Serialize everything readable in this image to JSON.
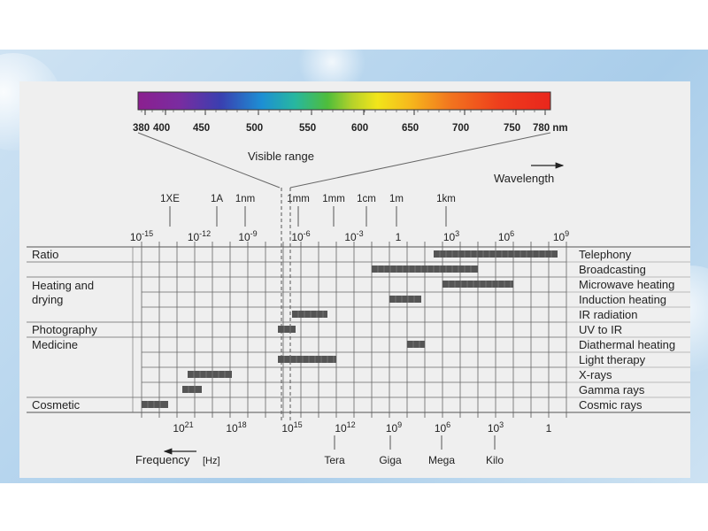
{
  "wavelength_nm_labels": [
    "380",
    "400",
    "450",
    "500",
    "550",
    "600",
    "650",
    "700",
    "750",
    "780 nm"
  ],
  "visible_range_label": "Visible range",
  "wavelength_label": "Wavelength",
  "frequency_label": "Frequency",
  "frequency_unit": "[Hz]",
  "length_labels": [
    "1XE",
    "1A",
    "1nm",
    "1mm",
    "1mm",
    "1cm",
    "1m",
    "1km"
  ],
  "power_ticks": [
    {
      "base": "10",
      "exp": "-15"
    },
    {
      "base": "10",
      "exp": "-12"
    },
    {
      "base": "10",
      "exp": "-9"
    },
    {
      "base": "10",
      "exp": "-6"
    },
    {
      "base": "10",
      "exp": "-3"
    },
    {
      "base": "1",
      "exp": ""
    },
    {
      "base": "10",
      "exp": "3"
    },
    {
      "base": "10",
      "exp": "6"
    },
    {
      "base": "10",
      "exp": "9"
    }
  ],
  "frequency_ticks": [
    {
      "base": "10",
      "exp": "21"
    },
    {
      "base": "10",
      "exp": "18"
    },
    {
      "base": "10",
      "exp": "15"
    },
    {
      "base": "10",
      "exp": "12"
    },
    {
      "base": "10",
      "exp": "9"
    },
    {
      "base": "10",
      "exp": "6"
    },
    {
      "base": "10",
      "exp": "3"
    },
    {
      "base": "1",
      "exp": ""
    }
  ],
  "prefix_labels": [
    "Tera",
    "Giga",
    "Mega",
    "Kilo"
  ],
  "left_categories": [
    "Ratio",
    "Heating and",
    "drying",
    "Photography",
    "Medicine",
    "Cosmetic"
  ],
  "applications": [
    {
      "name": "Telephony",
      "start": 16.5,
      "end": 23.5
    },
    {
      "name": "Broadcasting",
      "start": 13,
      "end": 19
    },
    {
      "name": "Microwave heating",
      "start": 17,
      "end": 21
    },
    {
      "name": "Induction heating",
      "start": 14,
      "end": 15.8
    },
    {
      "name": "IR radiation",
      "start": 8.5,
      "end": 10.5
    },
    {
      "name": "UV to IR",
      "start": 7.7,
      "end": 8.7
    },
    {
      "name": "Diathermal heating",
      "start": 15,
      "end": 16
    },
    {
      "name": "Light therapy",
      "start": 7.7,
      "end": 11
    },
    {
      "name": "X-rays",
      "start": 2.6,
      "end": 5.1
    },
    {
      "name": "Gamma rays",
      "start": 2.3,
      "end": 3.4
    },
    {
      "name": "Cosmic rays",
      "start": 0,
      "end": 1.5
    }
  ],
  "colors": {
    "bar": "#555555",
    "grid": "#555555",
    "panel": "#efefef"
  }
}
